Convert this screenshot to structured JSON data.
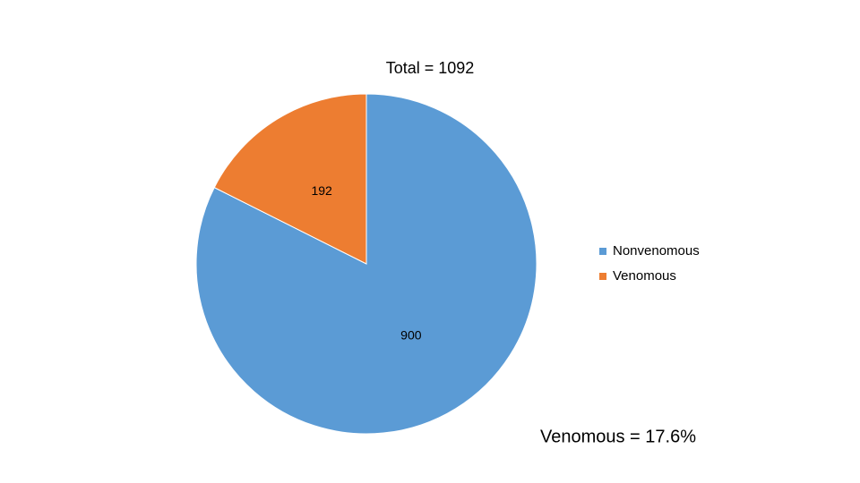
{
  "chart_data": {
    "type": "pie",
    "title": "Total = 1092",
    "categories": [
      "Nonvenomous",
      "Venomous"
    ],
    "values": [
      900,
      192
    ],
    "colors": [
      "#5b9bd5",
      "#ed7d31"
    ],
    "legend": "right",
    "annotation": "Venomous = 17.6%"
  }
}
